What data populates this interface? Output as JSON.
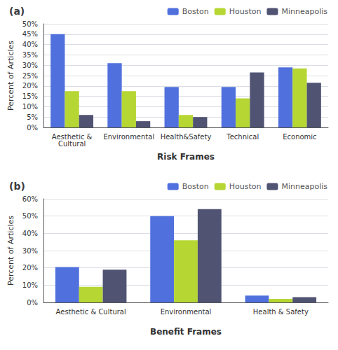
{
  "chart_data": [
    {
      "type": "bar",
      "title": "(a)",
      "categories": [
        "Aesthetic &\nCultural",
        "Environmental",
        "Health&Safety",
        "Technical",
        "Economic"
      ],
      "series": [
        {
          "name": "Boston",
          "values": [
            45,
            31,
            19.5,
            19.5,
            29
          ]
        },
        {
          "name": "Houston",
          "values": [
            17.5,
            17.5,
            6,
            14,
            28.5
          ]
        },
        {
          "name": "Minneapolis",
          "values": [
            6,
            3,
            5,
            26.5,
            21.5
          ]
        }
      ],
      "x_label": "Risk Frames",
      "y_label": "Percent of Articles",
      "ylim": [
        0,
        50
      ],
      "yticks": [
        {
          "value": 0,
          "label": "0%"
        },
        {
          "value": 5,
          "label": "5%"
        },
        {
          "value": 10,
          "label": "10%"
        },
        {
          "value": 15,
          "label": "15%"
        },
        {
          "value": 20,
          "label": "20%"
        },
        {
          "value": 25,
          "label": "25%"
        },
        {
          "value": 30,
          "label": "30%"
        },
        {
          "value": 35,
          "label": "35%"
        },
        {
          "value": 40,
          "label": "40%"
        },
        {
          "value": 45,
          "label": "45%"
        },
        {
          "value": 50,
          "label": "50%"
        }
      ],
      "grid": true,
      "legend": "upper right"
    },
    {
      "type": "bar",
      "title": "(b)",
      "categories": [
        "Aesthetic & Cultural",
        "Environmental",
        "Health & Safety"
      ],
      "series": [
        {
          "name": "Boston",
          "values": [
            20.5,
            50,
            4
          ]
        },
        {
          "name": "Houston",
          "values": [
            9,
            36,
            2
          ]
        },
        {
          "name": "Minneapolis",
          "values": [
            19,
            54,
            3
          ]
        }
      ],
      "x_label": "Benefit Frames",
      "y_label": "Percent of Articles",
      "ylim": [
        0,
        60
      ],
      "yticks": [
        {
          "value": 0,
          "label": "0%"
        },
        {
          "value": 10,
          "label": "10%"
        },
        {
          "value": 20,
          "label": "20%"
        },
        {
          "value": 30,
          "label": "30%"
        },
        {
          "value": 40,
          "label": "40%"
        },
        {
          "value": 50,
          "label": "50%"
        },
        {
          "value": 60,
          "label": "60%"
        }
      ],
      "grid": true,
      "legend": "upper right"
    }
  ]
}
